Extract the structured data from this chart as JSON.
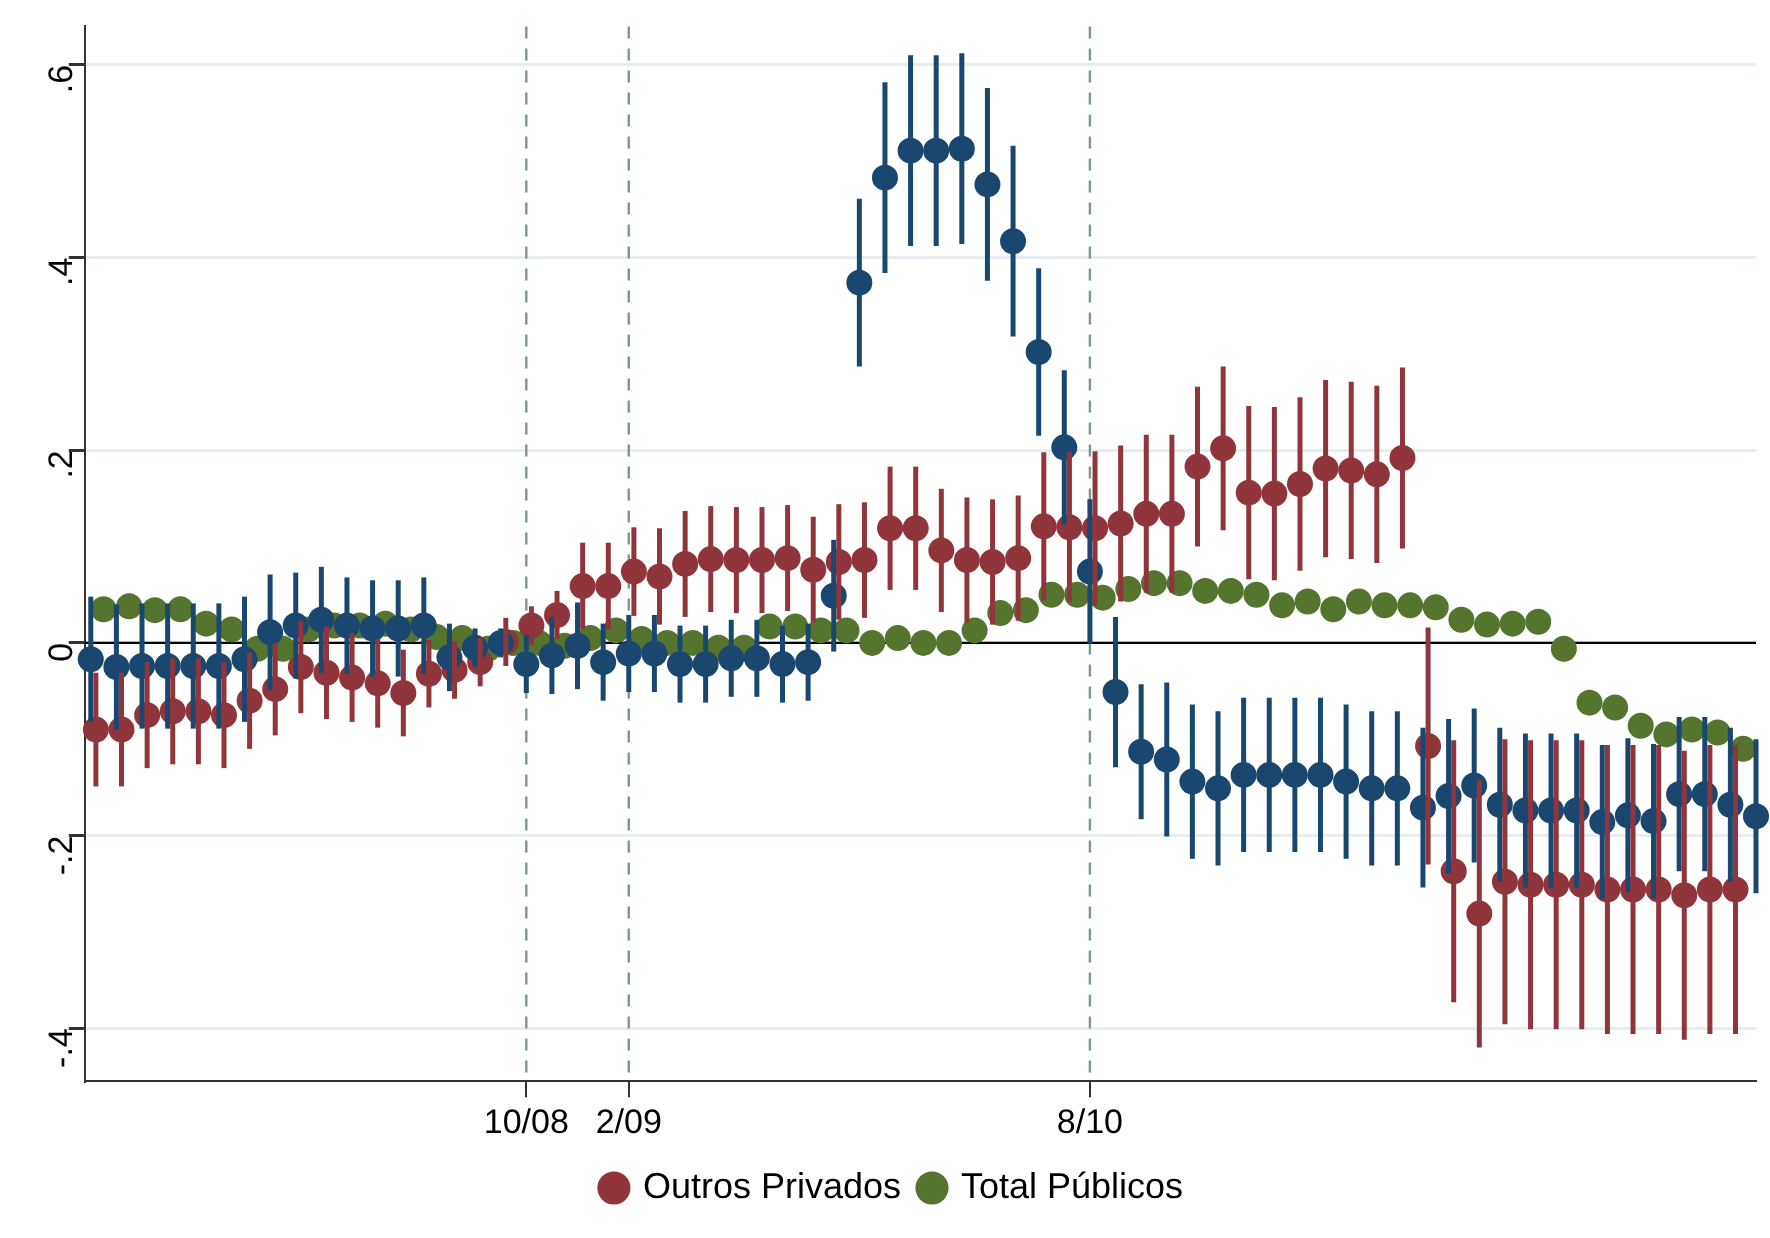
{
  "chart_data": {
    "type": "scatter",
    "marker": "circle",
    "grid": "y",
    "legend": "bottom",
    "xlim": [
      "2007-04-24",
      "2012-10"
    ],
    "ylim": [
      -0.455,
      0.64
    ],
    "xticks": [
      {
        "value": "2008-10",
        "label": "10/08"
      },
      {
        "value": "2009-02",
        "label": "2/09"
      },
      {
        "value": "2010-08",
        "label": "8/10"
      }
    ],
    "yticks": [
      {
        "value": -0.4,
        "label": "-.4"
      },
      {
        "value": -0.2,
        "label": "-.2"
      },
      {
        "value": 0,
        "label": "0"
      },
      {
        "value": 0.2,
        "label": ".2"
      },
      {
        "value": 0.4,
        "label": ".4"
      },
      {
        "value": 0.6,
        "label": ".6"
      }
    ],
    "ref_lines": [
      {
        "axis": "x",
        "value": "2008-10",
        "color": "#7a9a8a",
        "line_style": "dashed"
      },
      {
        "axis": "x",
        "value": "2009-02",
        "color": "#7a9a8a",
        "line_style": "dashed"
      },
      {
        "axis": "x",
        "value": "2010-08",
        "color": "#7a9a8a",
        "line_style": "dashed"
      },
      {
        "axis": "y",
        "value": 0,
        "color": "#000000",
        "line_style": "solid"
      }
    ],
    "series": [
      {
        "color": "#1a476f",
        "x": [
          "2007-05",
          "2007-06",
          "2007-07",
          "2007-08",
          "2007-09",
          "2007-10",
          "2007-11",
          "2007-12",
          "2008-01",
          "2008-02",
          "2008-03",
          "2008-04",
          "2008-05",
          "2008-06",
          "2008-07",
          "2008-08",
          "2008-09",
          "2008-10",
          "2008-11",
          "2008-12",
          "2009-01",
          "2009-02",
          "2009-03",
          "2009-04",
          "2009-05",
          "2009-06",
          "2009-07",
          "2009-08",
          "2009-09",
          "2009-10",
          "2009-11",
          "2009-12",
          "2010-01",
          "2010-02",
          "2010-03",
          "2010-04",
          "2010-05",
          "2010-06",
          "2010-07",
          "2010-08",
          "2010-09",
          "2010-10",
          "2010-11",
          "2010-12",
          "2011-01",
          "2011-02",
          "2011-03",
          "2011-04",
          "2011-05",
          "2011-06",
          "2011-07",
          "2011-08",
          "2011-09",
          "2011-10",
          "2011-11",
          "2011-12",
          "2012-01",
          "2012-02",
          "2012-03",
          "2012-04",
          "2012-05",
          "2012-06",
          "2012-07",
          "2012-08",
          "2012-09",
          "2012-10"
        ],
        "values": [
          -0.017,
          -0.025,
          -0.024,
          -0.024,
          -0.024,
          -0.024,
          -0.017,
          0.011,
          0.018,
          0.024,
          0.018,
          0.015,
          0.015,
          0.018,
          -0.015,
          -0.005,
          0,
          -0.022,
          -0.013,
          -0.003,
          -0.02,
          -0.011,
          -0.011,
          -0.022,
          -0.022,
          -0.016,
          -0.016,
          -0.022,
          -0.02,
          0.049,
          0.374,
          0.483,
          0.511,
          0.511,
          0.513,
          0.476,
          0.417,
          0.302,
          0.203,
          0.074,
          -0.051,
          -0.113,
          -0.121,
          -0.144,
          -0.151,
          -0.137,
          -0.137,
          -0.137,
          -0.137,
          -0.144,
          -0.151,
          -0.151,
          -0.171,
          -0.159,
          -0.148,
          -0.168,
          -0.174,
          -0.174,
          -0.174,
          -0.186,
          -0.179,
          -0.185,
          -0.157,
          -0.157,
          -0.168,
          -0.18
        ],
        "errors": [
          0.065,
          0.065,
          0.065,
          0.065,
          0.065,
          0.065,
          0.065,
          0.06,
          0.055,
          0.055,
          0.05,
          0.05,
          0.05,
          0.05,
          0.035,
          0.02,
          0.015,
          0.03,
          0.04,
          0.045,
          0.04,
          0.04,
          0.04,
          0.04,
          0.04,
          0.04,
          0.04,
          0.04,
          0.04,
          0.058,
          0.087,
          0.099,
          0.099,
          0.099,
          0.099,
          0.1,
          0.099,
          0.087,
          0.08,
          0.075,
          0.078,
          0.07,
          0.08,
          0.08,
          0.08,
          0.08,
          0.08,
          0.08,
          0.08,
          0.08,
          0.08,
          0.08,
          0.083,
          0.08,
          0.08,
          0.08,
          0.08,
          0.08,
          0.08,
          0.08,
          0.08,
          0.08,
          0.08,
          0.08,
          0.08,
          0.08
        ]
      },
      {
        "name": "Outros Privados",
        "color": "#90353b",
        "x": [
          "2007-05-07",
          "2007-06-07",
          "2007-07-07",
          "2007-08-07",
          "2007-09-07",
          "2007-10-07",
          "2007-11-07",
          "2007-12-07",
          "2008-01-07",
          "2008-02-07",
          "2008-03-07",
          "2008-04-07",
          "2008-05-07",
          "2008-06-07",
          "2008-07-07",
          "2008-08-07",
          "2008-09-07",
          "2008-10-07",
          "2008-11-07",
          "2008-12-07",
          "2009-01-07",
          "2009-02-07",
          "2009-03-07",
          "2009-04-07",
          "2009-05-07",
          "2009-06-07",
          "2009-07-07",
          "2009-08-07",
          "2009-09-07",
          "2009-10-07",
          "2009-11-07",
          "2009-12-07",
          "2010-01-07",
          "2010-02-07",
          "2010-03-07",
          "2010-04-07",
          "2010-05-07",
          "2010-06-07",
          "2010-07-07",
          "2010-08-07",
          "2010-09-07",
          "2010-10-07",
          "2010-11-07",
          "2010-12-07",
          "2011-01-07",
          "2011-02-07",
          "2011-03-07",
          "2011-04-07",
          "2011-05-07",
          "2011-06-07",
          "2011-07-07",
          "2011-08-07",
          "2011-09-07",
          "2011-10-07",
          "2011-11-07",
          "2011-12-07",
          "2012-01-07",
          "2012-02-07",
          "2012-03-07",
          "2012-04-07",
          "2012-05-07",
          "2012-06-07",
          "2012-07-07",
          "2012-08-07",
          "2012-09-07"
        ],
        "values": [
          -0.09,
          -0.09,
          -0.075,
          -0.071,
          -0.071,
          -0.075,
          -0.06,
          -0.048,
          -0.025,
          -0.031,
          -0.036,
          -0.042,
          -0.052,
          -0.032,
          -0.028,
          -0.02,
          0.001,
          0.018,
          0.029,
          0.059,
          0.059,
          0.074,
          0.069,
          0.082,
          0.087,
          0.086,
          0.086,
          0.088,
          0.076,
          0.084,
          0.086,
          0.119,
          0.119,
          0.096,
          0.086,
          0.084,
          0.088,
          0.121,
          0.12,
          0.119,
          0.124,
          0.134,
          0.134,
          0.183,
          0.202,
          0.156,
          0.155,
          0.165,
          0.181,
          0.179,
          0.175,
          0.192,
          -0.107,
          -0.237,
          -0.281,
          -0.248,
          -0.251,
          -0.251,
          -0.251,
          -0.256,
          -0.256,
          -0.256,
          -0.262,
          -0.256,
          -0.256
        ],
        "errors": [
          0.059,
          0.059,
          0.055,
          0.055,
          0.055,
          0.055,
          0.05,
          0.048,
          0.048,
          0.048,
          0.046,
          0.046,
          0.045,
          0.035,
          0.03,
          0.025,
          0.025,
          0.02,
          0.025,
          0.045,
          0.045,
          0.046,
          0.05,
          0.055,
          0.055,
          0.055,
          0.055,
          0.055,
          0.055,
          0.06,
          0.06,
          0.064,
          0.064,
          0.064,
          0.065,
          0.065,
          0.065,
          0.077,
          0.078,
          0.08,
          0.081,
          0.082,
          0.082,
          0.083,
          0.085,
          0.09,
          0.09,
          0.09,
          0.092,
          0.092,
          0.092,
          0.094,
          0.123,
          0.136,
          0.139,
          0.148,
          0.15,
          0.15,
          0.15,
          0.15,
          0.15,
          0.15,
          0.15,
          0.15,
          0.15
        ]
      },
      {
        "name": "Total Públicos",
        "color": "#55752f",
        "x": [
          "2007-05-16",
          "2007-06-16",
          "2007-07-16",
          "2007-08-16",
          "2007-09-16",
          "2007-10-16",
          "2007-11-16",
          "2007-12-16",
          "2008-01-16",
          "2008-02-16",
          "2008-03-16",
          "2008-04-16",
          "2008-05-16",
          "2008-06-16",
          "2008-07-16",
          "2008-08-16",
          "2008-09-16",
          "2008-10-16",
          "2008-11-16",
          "2008-12-16",
          "2009-01-16",
          "2009-02-16",
          "2009-03-16",
          "2009-04-16",
          "2009-05-16",
          "2009-06-16",
          "2009-07-16",
          "2009-08-16",
          "2009-09-16",
          "2009-10-16",
          "2009-11-16",
          "2009-12-16",
          "2010-01-16",
          "2010-02-16",
          "2010-03-16",
          "2010-04-16",
          "2010-05-16",
          "2010-06-16",
          "2010-07-16",
          "2010-08-16",
          "2010-09-16",
          "2010-10-16",
          "2010-11-16",
          "2010-12-16",
          "2011-01-16",
          "2011-02-16",
          "2011-03-16",
          "2011-04-16",
          "2011-05-16",
          "2011-06-16",
          "2011-07-16",
          "2011-08-16",
          "2011-09-16",
          "2011-10-16",
          "2011-11-16",
          "2011-12-16",
          "2012-01-16",
          "2012-02-16",
          "2012-03-16",
          "2012-04-16",
          "2012-05-16",
          "2012-06-16",
          "2012-07-16",
          "2012-08-16",
          "2012-09-16"
        ],
        "values": [
          0.035,
          0.038,
          0.034,
          0.035,
          0.02,
          0.014,
          -0.006,
          -0.006,
          0.014,
          0.018,
          0.018,
          0.02,
          0.014,
          0.006,
          0.005,
          -0.006,
          0,
          0,
          -0.003,
          0.005,
          0.013,
          0.004,
          0,
          0,
          -0.005,
          -0.005,
          0.017,
          0.017,
          0.013,
          0.013,
          0,
          0.005,
          0,
          0,
          0.013,
          0.031,
          0.034,
          0.05,
          0.05,
          0.047,
          0.056,
          0.062,
          0.062,
          0.054,
          0.054,
          0.05,
          0.039,
          0.043,
          0.035,
          0.043,
          0.039,
          0.039,
          0.037,
          0.024,
          0.019,
          0.02,
          0.022,
          -0.006,
          -0.062,
          -0.067,
          -0.086,
          -0.095,
          -0.09,
          -0.093,
          -0.11
        ]
      }
    ]
  }
}
